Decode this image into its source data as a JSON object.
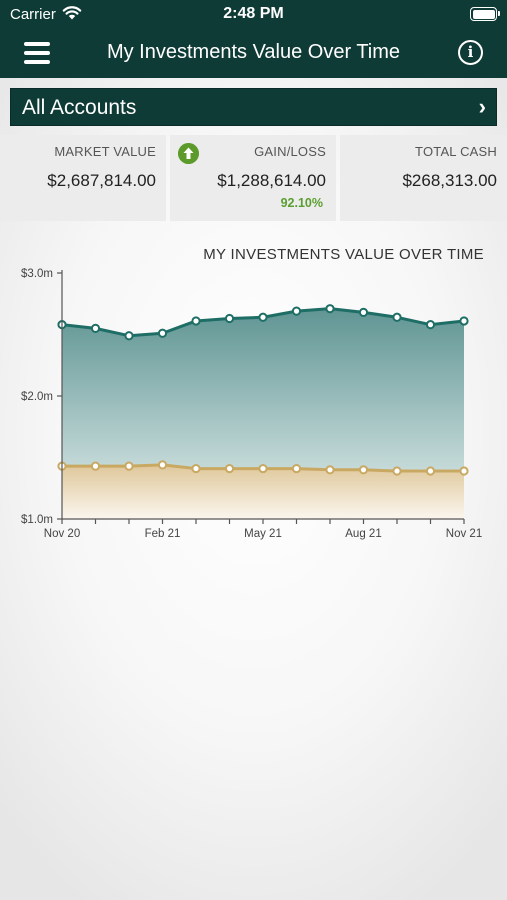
{
  "status_bar": {
    "carrier": "Carrier",
    "time": "2:48 PM"
  },
  "nav": {
    "title": "My Investments Value Over Time",
    "menu_icon": "hamburger-menu-icon",
    "info_icon": "info-icon"
  },
  "accounts": {
    "label": "All Accounts",
    "chevron": "›"
  },
  "summary": {
    "market_value": {
      "label": "MARKET VALUE",
      "value": "$2,687,814.00"
    },
    "gain_loss": {
      "label": "GAIN/LOSS",
      "value": "$1,288,614.00",
      "percent": "92.10%",
      "trend_icon": "arrow-up-circle-icon"
    },
    "total_cash": {
      "label": "TOTAL CASH",
      "value": "$268,313.00"
    }
  },
  "colors": {
    "header_bg": "#0f3b36",
    "market_line": "#1e6e66",
    "cost_line": "#c9a862",
    "gain_green": "#5a9e2f"
  },
  "chart_data": {
    "type": "area",
    "title": "MY INVESTMENTS VALUE OVER TIME",
    "y_ticks": [
      "$1.0m",
      "$2.0m",
      "$3.0m"
    ],
    "x_tick_labels": [
      "Nov 20",
      "Feb 21",
      "May 21",
      "Aug 21",
      "Nov 21"
    ],
    "x_tick_label_indices": [
      0,
      3,
      6,
      9,
      12
    ],
    "ylim": [
      1.0,
      3.0
    ],
    "grid": false,
    "series": [
      {
        "values": [
          2.58,
          2.55,
          2.49,
          2.51,
          2.61,
          2.63,
          2.64,
          2.69,
          2.71,
          2.68,
          2.64,
          2.58,
          2.61
        ]
      },
      {
        "values": [
          1.43,
          1.43,
          1.43,
          1.44,
          1.41,
          1.41,
          1.41,
          1.41,
          1.4,
          1.4,
          1.39,
          1.39,
          1.39
        ]
      }
    ]
  }
}
